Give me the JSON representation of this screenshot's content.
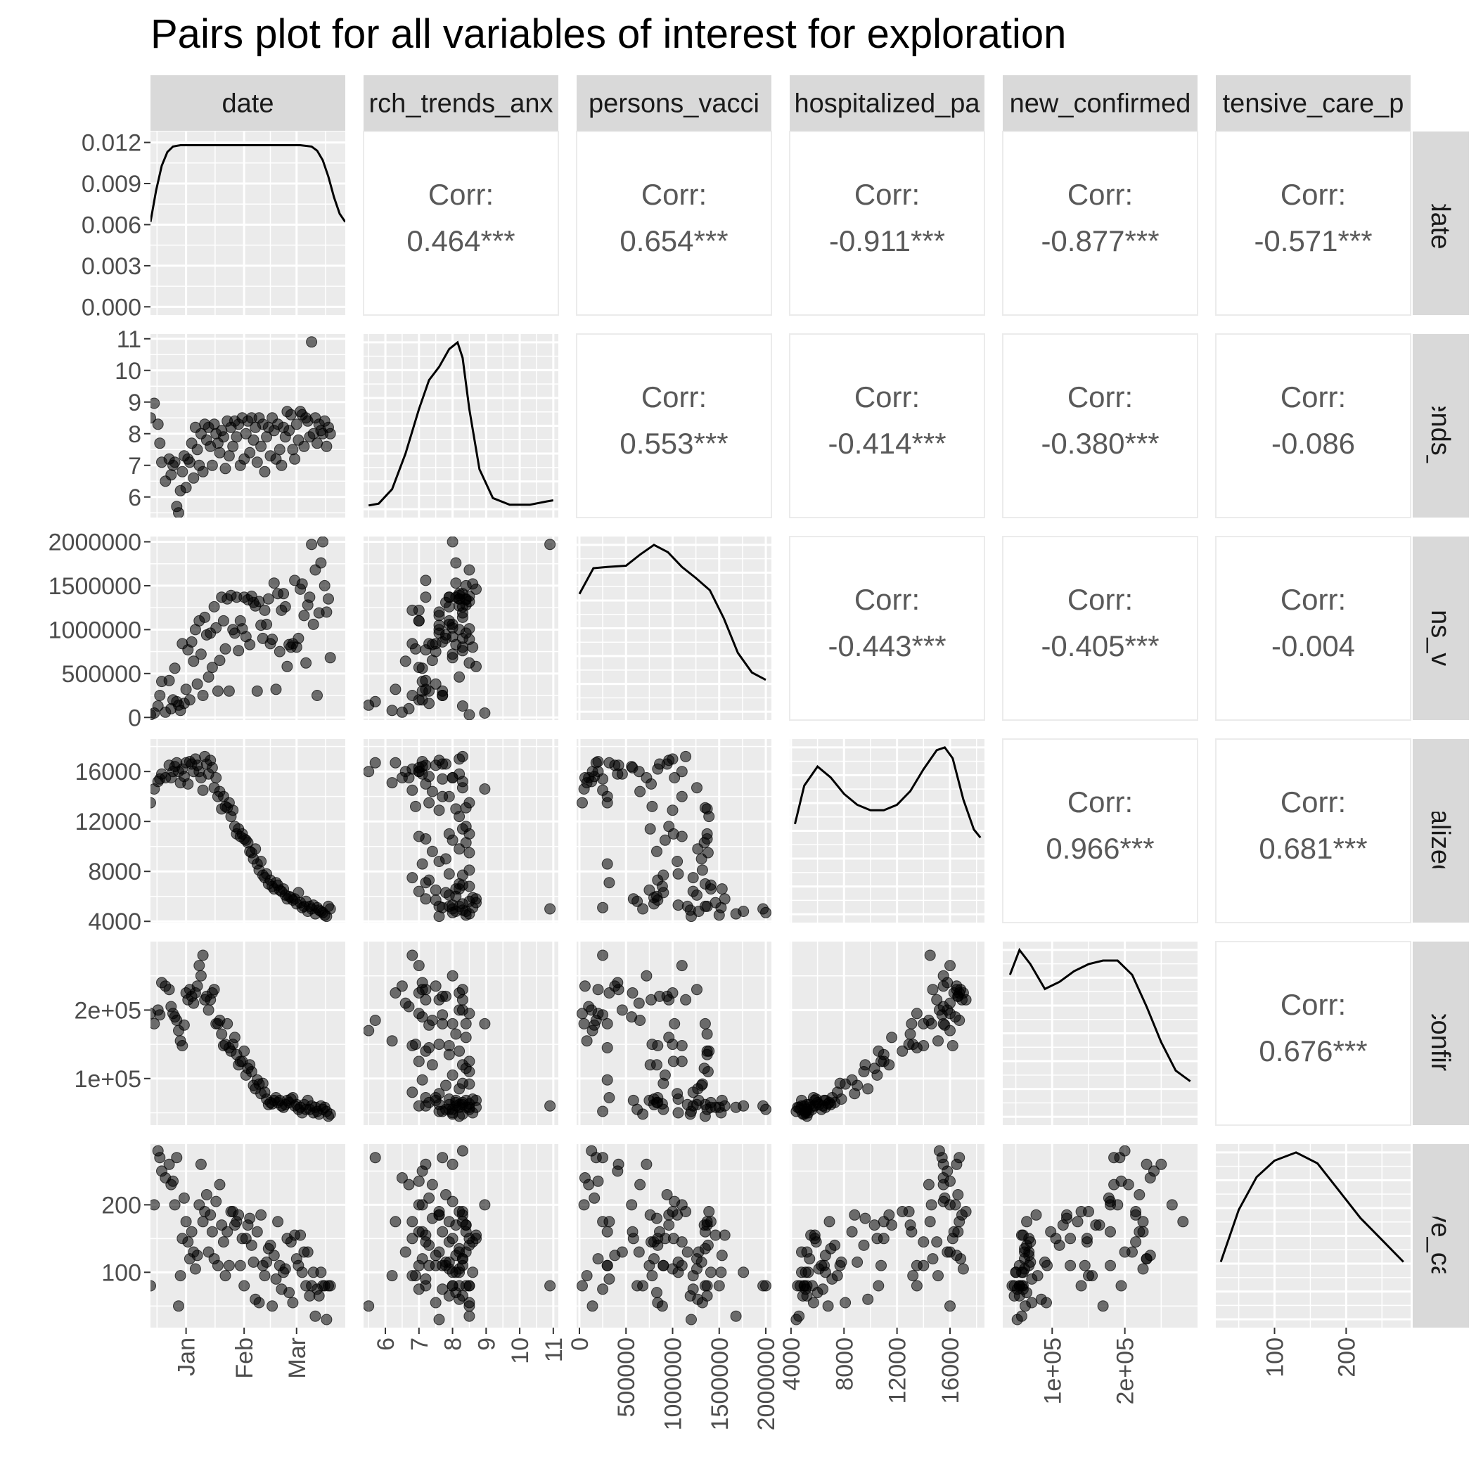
{
  "chart_data": {
    "type": "pairs",
    "title": "Pairs plot for all variables of interest for exploration",
    "variables": [
      {
        "name": "date",
        "label": "date",
        "strip_top": "date",
        "strip_right": "date",
        "range": [
          0,
          104
        ],
        "ticks": [
          {
            "v": 19,
            "t": "Jan"
          },
          {
            "v": 50,
            "t": "Feb"
          },
          {
            "v": 78,
            "t": "Mar"
          }
        ]
      },
      {
        "name": "search_trends_anxiety",
        "label": "search_trends_anxiety",
        "strip_top": "rch_trends_anx",
        "strip_right": "ch_trends_anx",
        "range": [
          5.35,
          11.15
        ],
        "ticks": [
          {
            "v": 6,
            "t": "6"
          },
          {
            "v": 7,
            "t": "7"
          },
          {
            "v": 8,
            "t": "8"
          },
          {
            "v": 9,
            "t": "9"
          },
          {
            "v": 10,
            "t": "10"
          },
          {
            "v": 11,
            "t": "11"
          }
        ]
      },
      {
        "name": "persons_vaccinated",
        "label": "persons_vaccinated",
        "strip_top": "persons_vacci",
        "strip_right": "persons_vacci",
        "range": [
          -30000,
          2060000
        ],
        "ticks": [
          {
            "v": 0,
            "t": "0"
          },
          {
            "v": 500000,
            "t": "500000"
          },
          {
            "v": 1000000,
            "t": "1000000"
          },
          {
            "v": 1500000,
            "t": "1500000"
          },
          {
            "v": 2000000,
            "t": "2000000"
          }
        ]
      },
      {
        "name": "hospitalized_patients",
        "label": "hospitalized_patients",
        "strip_top": "hospitalized_pa",
        "strip_right": "hospitalized_pa",
        "range": [
          3900,
          18600
        ],
        "ticks": [
          {
            "v": 4000,
            "t": "4000"
          },
          {
            "v": 8000,
            "t": "8000"
          },
          {
            "v": 12000,
            "t": "12000"
          },
          {
            "v": 16000,
            "t": "16000"
          }
        ]
      },
      {
        "name": "new_confirmed",
        "label": "new_confirmed",
        "strip_top": "new_confirmed",
        "strip_right": "new_confirmed",
        "range": [
          32000,
          300000
        ],
        "ticks": [
          {
            "v": 100000,
            "t": "1e+05"
          },
          {
            "v": 200000,
            "t": "2e+05"
          }
        ]
      },
      {
        "name": "intensive_care_patients",
        "label": "intensive_care_patients",
        "strip_top": "tensive_care_p",
        "strip_right": "tensive_care_",
        "range": [
          18,
          290
        ],
        "ticks": [
          {
            "v": 100,
            "t": "100"
          },
          {
            "v": 200,
            "t": "200"
          }
        ]
      }
    ],
    "density_axis": {
      "range": [
        -0.0006,
        0.0128
      ],
      "ticks": [
        {
          "v": 0,
          "t": "0.000"
        },
        {
          "v": 0.003,
          "t": "0.003"
        },
        {
          "v": 0.006,
          "t": "0.006"
        },
        {
          "v": 0.009,
          "t": "0.009"
        },
        {
          "v": 0.012,
          "t": "0.012"
        }
      ]
    },
    "correlations": [
      {
        "row": 0,
        "col": 1,
        "label": "Corr:",
        "value": "0.464***"
      },
      {
        "row": 0,
        "col": 2,
        "label": "Corr:",
        "value": "0.654***"
      },
      {
        "row": 0,
        "col": 3,
        "label": "Corr:",
        "value": "-0.911***"
      },
      {
        "row": 0,
        "col": 4,
        "label": "Corr:",
        "value": "-0.877***"
      },
      {
        "row": 0,
        "col": 5,
        "label": "Corr:",
        "value": "-0.571***"
      },
      {
        "row": 1,
        "col": 2,
        "label": "Corr:",
        "value": "0.553***"
      },
      {
        "row": 1,
        "col": 3,
        "label": "Corr:",
        "value": "-0.414***"
      },
      {
        "row": 1,
        "col": 4,
        "label": "Corr:",
        "value": "-0.380***"
      },
      {
        "row": 1,
        "col": 5,
        "label": "Corr:",
        "value": "-0.086"
      },
      {
        "row": 2,
        "col": 3,
        "label": "Corr:",
        "value": "-0.443***"
      },
      {
        "row": 2,
        "col": 4,
        "label": "Corr:",
        "value": "-0.405***"
      },
      {
        "row": 2,
        "col": 5,
        "label": "Corr:",
        "value": "-0.004"
      },
      {
        "row": 3,
        "col": 4,
        "label": "Corr:",
        "value": "0.966***"
      },
      {
        "row": 3,
        "col": 5,
        "label": "Corr:",
        "value": "0.681***"
      },
      {
        "row": 4,
        "col": 5,
        "label": "Corr:",
        "value": "0.676***"
      }
    ],
    "densities": [
      [
        [
          0,
          0.0062
        ],
        [
          3,
          0.0085
        ],
        [
          6,
          0.0103
        ],
        [
          9,
          0.0113
        ],
        [
          12,
          0.0117
        ],
        [
          16,
          0.0118
        ],
        [
          25,
          0.0118
        ],
        [
          40,
          0.0118
        ],
        [
          55,
          0.0118
        ],
        [
          70,
          0.0118
        ],
        [
          80,
          0.0118
        ],
        [
          86,
          0.0117
        ],
        [
          89,
          0.0114
        ],
        [
          92,
          0.0107
        ],
        [
          95,
          0.0095
        ],
        [
          98,
          0.008
        ],
        [
          101,
          0.0068
        ],
        [
          104,
          0.0062
        ]
      ],
      [
        [
          5.5,
          0.017
        ],
        [
          5.8,
          0.025
        ],
        [
          6.2,
          0.09
        ],
        [
          6.6,
          0.25
        ],
        [
          7.0,
          0.45
        ],
        [
          7.3,
          0.58
        ],
        [
          7.6,
          0.64
        ],
        [
          7.9,
          0.72
        ],
        [
          8.15,
          0.75
        ],
        [
          8.3,
          0.68
        ],
        [
          8.5,
          0.45
        ],
        [
          8.8,
          0.18
        ],
        [
          9.2,
          0.05
        ],
        [
          9.7,
          0.02
        ],
        [
          10.3,
          0.02
        ],
        [
          10.8,
          0.035
        ],
        [
          11.0,
          0.04
        ]
      ],
      [
        [
          0,
          4.8e-07
        ],
        [
          150000,
          5.85e-07
        ],
        [
          300000,
          5.9e-07
        ],
        [
          500000,
          5.95e-07
        ],
        [
          650000,
          6.4e-07
        ],
        [
          800000,
          6.8e-07
        ],
        [
          950000,
          6.5e-07
        ],
        [
          1100000,
          5.9e-07
        ],
        [
          1250000,
          5.45e-07
        ],
        [
          1400000,
          4.95e-07
        ],
        [
          1550000,
          3.8e-07
        ],
        [
          1700000,
          2.4e-07
        ],
        [
          1850000,
          1.6e-07
        ],
        [
          2000000,
          1.3e-07
        ]
      ],
      [
        [
          4300,
          6.6e-05
        ],
        [
          5000,
          9.4e-05
        ],
        [
          6000,
          0.000108
        ],
        [
          7000,
          0.0001
        ],
        [
          8000,
          8.8e-05
        ],
        [
          9000,
          8e-05
        ],
        [
          10000,
          7.6e-05
        ],
        [
          11000,
          7.6e-05
        ],
        [
          12000,
          8e-05
        ],
        [
          13000,
          9e-05
        ],
        [
          14000,
          0.000106
        ],
        [
          15000,
          0.00012
        ],
        [
          15600,
          0.000122
        ],
        [
          16200,
          0.000114
        ],
        [
          17000,
          8.4e-05
        ],
        [
          17800,
          6.2e-05
        ],
        [
          18300,
          5.6e-05
        ]
      ],
      [
        [
          42000,
          4e-06
        ],
        [
          55000,
          4.7e-06
        ],
        [
          70000,
          4.3e-06
        ],
        [
          90000,
          3.6e-06
        ],
        [
          110000,
          3.8e-06
        ],
        [
          130000,
          4.1e-06
        ],
        [
          150000,
          4.3e-06
        ],
        [
          170000,
          4.4e-06
        ],
        [
          190000,
          4.4e-06
        ],
        [
          210000,
          4e-06
        ],
        [
          230000,
          3.1e-06
        ],
        [
          250000,
          2.1e-06
        ],
        [
          270000,
          1.3e-06
        ],
        [
          290000,
          1e-06
        ]
      ],
      [
        [
          25,
          0.0021
        ],
        [
          50,
          0.004
        ],
        [
          75,
          0.0052
        ],
        [
          100,
          0.0058
        ],
        [
          130,
          0.0061
        ],
        [
          160,
          0.0057
        ],
        [
          190,
          0.0047
        ],
        [
          220,
          0.0037
        ],
        [
          250,
          0.0029
        ],
        [
          280,
          0.0021
        ]
      ]
    ],
    "points": {
      "date": [
        0,
        2,
        4,
        5,
        6,
        8,
        10,
        11,
        12,
        13,
        14,
        15,
        16,
        17,
        18,
        19,
        20,
        21,
        22,
        23,
        24,
        25,
        26,
        27,
        28,
        29,
        30,
        31,
        32,
        33,
        34,
        35,
        36,
        37,
        38,
        39,
        40,
        41,
        42,
        43,
        44,
        45,
        46,
        47,
        48,
        49,
        50,
        51,
        52,
        53,
        54,
        55,
        56,
        57,
        58,
        59,
        60,
        61,
        62,
        63,
        64,
        65,
        66,
        67,
        68,
        69,
        70,
        71,
        72,
        73,
        74,
        75,
        76,
        77,
        78,
        79,
        80,
        81,
        82,
        83,
        84,
        85,
        86,
        87,
        88,
        89,
        90,
        91,
        92,
        93,
        94,
        95,
        96
      ],
      "search_trends_anxiety": [
        8.5,
        8.96,
        8.3,
        7.7,
        7.1,
        6.5,
        7.2,
        6.7,
        7.0,
        7.1,
        5.7,
        5.5,
        6.2,
        6.8,
        7.3,
        6.3,
        7.2,
        7.1,
        7.7,
        6.6,
        8.2,
        7.5,
        7.0,
        8.0,
        6.8,
        8.3,
        7.8,
        8.2,
        7.6,
        7.0,
        8.3,
        8.0,
        7.7,
        7.4,
        8.1,
        7.9,
        6.9,
        8.4,
        7.3,
        8.2,
        7.6,
        8.4,
        7.9,
        8.3,
        7.0,
        8.5,
        7.2,
        8.0,
        8.4,
        7.4,
        8.5,
        7.8,
        8.2,
        7.1,
        8.5,
        7.6,
        8.3,
        6.8,
        7.9,
        8.2,
        7.3,
        8.5,
        8.1,
        7.2,
        8.3,
        7.5,
        7.0,
        8.2,
        7.9,
        8.7,
        8.1,
        8.6,
        7.5,
        7.2,
        8.3,
        7.8,
        8.7,
        8.6,
        7.6,
        8.5,
        8.4,
        7.9,
        10.9,
        8.0,
        8.5,
        7.7,
        8.3,
        8.1,
        8.0,
        8.4,
        7.6,
        8.2,
        8.0
      ],
      "persons_vaccinated": [
        30000,
        50000,
        130000,
        250000,
        410000,
        60000,
        420000,
        100000,
        200000,
        560000,
        180000,
        140000,
        80000,
        840000,
        160000,
        320000,
        770000,
        200000,
        860000,
        640000,
        1000000,
        380000,
        1100000,
        720000,
        250000,
        1140000,
        940000,
        460000,
        960000,
        570000,
        1260000,
        1020000,
        300000,
        650000,
        1370000,
        1100000,
        780000,
        1350000,
        300000,
        1390000,
        1000000,
        960000,
        1370000,
        760000,
        1100000,
        1010000,
        1370000,
        920000,
        1340000,
        830000,
        1380000,
        1310000,
        1270000,
        300000,
        1320000,
        1050000,
        900000,
        1220000,
        1060000,
        1350000,
        840000,
        890000,
        1530000,
        320000,
        1410000,
        750000,
        1220000,
        1410000,
        1260000,
        580000,
        830000,
        800000,
        840000,
        1560000,
        800000,
        900000,
        1460000,
        1520000,
        1160000,
        620000,
        1280000,
        1370000,
        1970000,
        1060000,
        1680000,
        250000,
        1190000,
        1760000,
        2000000,
        1500000,
        1200000,
        1350000,
        680000
      ],
      "hospitalized_patients": [
        13500,
        14600,
        15200,
        15400,
        15800,
        15500,
        16500,
        15500,
        16000,
        16400,
        16700,
        16000,
        15100,
        16200,
        15600,
        16700,
        15000,
        16800,
        16600,
        16000,
        17000,
        16500,
        16000,
        15500,
        14500,
        17200,
        16600,
        15800,
        16900,
        16300,
        14700,
        15500,
        14000,
        14400,
        13000,
        14000,
        13200,
        13100,
        13500,
        12400,
        12900,
        11600,
        11000,
        11400,
        10800,
        11000,
        10600,
        10500,
        10300,
        9600,
        9500,
        9000,
        9800,
        8600,
        8100,
        8800,
        7700,
        7500,
        7800,
        7000,
        7300,
        6800,
        6600,
        7100,
        6900,
        6500,
        6400,
        6600,
        6100,
        5800,
        6000,
        5900,
        5700,
        5800,
        5400,
        6300,
        5500,
        5100,
        5200,
        5600,
        4800,
        5200,
        5000,
        5300,
        4600,
        5100,
        4900,
        4800,
        4700,
        4500,
        4400,
        5200,
        5000
      ],
      "new_confirmed": [
        195000,
        180000,
        200000,
        193000,
        240000,
        235000,
        230000,
        205000,
        195000,
        190000,
        185000,
        170000,
        155000,
        148000,
        178000,
        225000,
        215000,
        230000,
        220000,
        210000,
        225000,
        235000,
        265000,
        250000,
        280000,
        215000,
        220000,
        200000,
        215000,
        225000,
        230000,
        180000,
        180000,
        185000,
        165000,
        148000,
        150000,
        180000,
        145000,
        140000,
        150000,
        160000,
        135000,
        120000,
        125000,
        125000,
        140000,
        105000,
        115000,
        120000,
        110000,
        90000,
        85000,
        98000,
        92000,
        78000,
        93000,
        80000,
        70000,
        62000,
        65000,
        63000,
        68000,
        72000,
        65000,
        68000,
        60000,
        58000,
        62000,
        68000,
        65000,
        70000,
        72000,
        60000,
        62000,
        55000,
        58000,
        50000,
        62000,
        55000,
        68000,
        55000,
        60000,
        50000,
        58000,
        52000,
        48000,
        60000,
        55000,
        58000,
        52000,
        45000,
        48000
      ],
      "intensive_care_patients": [
        80,
        200,
        280,
        270,
        250,
        240,
        260,
        230,
        235,
        200,
        270,
        50,
        95,
        150,
        210,
        175,
        145,
        120,
        160,
        130,
        105,
        125,
        200,
        260,
        175,
        190,
        215,
        130,
        185,
        160,
        120,
        205,
        110,
        230,
        170,
        145,
        95,
        160,
        110,
        190,
        190,
        170,
        175,
        185,
        110,
        150,
        80,
        150,
        170,
        180,
        140,
        115,
        60,
        160,
        55,
        185,
        110,
        95,
        115,
        135,
        140,
        50,
        125,
        90,
        175,
        110,
        75,
        100,
        105,
        150,
        70,
        145,
        55,
        155,
        120,
        110,
        155,
        100,
        130,
        80,
        130,
        65,
        80,
        100,
        35,
        75,
        65,
        100,
        80,
        80,
        30,
        80,
        80
      ]
    }
  }
}
